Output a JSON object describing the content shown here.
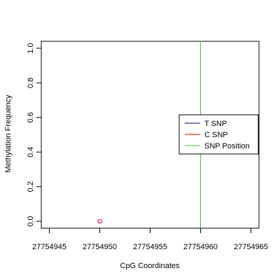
{
  "chart_data": {
    "type": "scatter",
    "title": "",
    "xlabel": "CpG Coordinates",
    "ylabel": "Methylation Frequency",
    "xlim": [
      27754944.2,
      27754965.8
    ],
    "ylim": [
      -0.04,
      1.04
    ],
    "x_ticks": [
      27754945,
      27754950,
      27754955,
      27754960,
      27754965
    ],
    "x_tick_labels": [
      "27754945",
      "27754950",
      "27754955",
      "27754960",
      "27754965"
    ],
    "y_ticks": [
      0.0,
      0.2,
      0.4,
      0.6,
      0.8,
      1.0
    ],
    "y_tick_labels": [
      "0.0",
      "0.2",
      "0.4",
      "0.6",
      "0.8",
      "1.0"
    ],
    "points": [
      {
        "x": 27754950,
        "y": 0.0,
        "color": "#cc0066"
      }
    ],
    "snp_position": 27754960,
    "legend": {
      "placement": "right",
      "entries": [
        {
          "label": "T SNP",
          "color": "#000080"
        },
        {
          "label": "C SNP",
          "color": "#cc0000"
        },
        {
          "label": "SNP Position",
          "color": "#33cc33"
        }
      ]
    },
    "grid": false
  }
}
